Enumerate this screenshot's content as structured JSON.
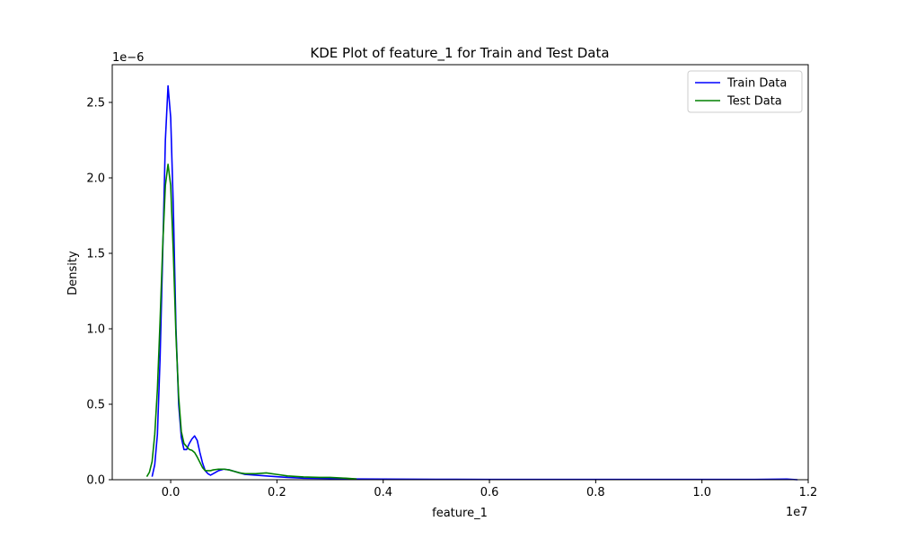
{
  "chart_data": {
    "type": "line",
    "title": "KDE Plot of feature_1 for Train and Test Data",
    "xlabel": "feature_1",
    "ylabel": "Density",
    "x_offset_label": "1e7",
    "y_offset_label": "1e−6",
    "xlim": [
      -0.11,
      1.2
    ],
    "ylim": [
      0,
      2.75
    ],
    "xticks": [
      0.0,
      0.2,
      0.4,
      0.6,
      0.8,
      1.0,
      1.2
    ],
    "xtick_labels": [
      "0.0",
      "0.2",
      "0.4",
      "0.6",
      "0.8",
      "1.0",
      "1.2"
    ],
    "yticks": [
      0.0,
      0.5,
      1.0,
      1.5,
      2.0,
      2.5
    ],
    "ytick_labels": [
      "0.0",
      "0.5",
      "1.0",
      "1.5",
      "2.0",
      "2.5"
    ],
    "grid": false,
    "legend_position": "top-right",
    "series": [
      {
        "name": "Train Data",
        "color": "#0000ff",
        "x": [
          -0.035,
          -0.03,
          -0.025,
          -0.02,
          -0.015,
          -0.01,
          -0.005,
          0.0,
          0.005,
          0.01,
          0.015,
          0.02,
          0.025,
          0.03,
          0.035,
          0.04,
          0.045,
          0.05,
          0.055,
          0.06,
          0.065,
          0.07,
          0.075,
          0.08,
          0.09,
          0.1,
          0.11,
          0.12,
          0.13,
          0.14,
          0.16,
          0.18,
          0.2,
          0.22,
          0.25,
          0.3,
          0.35,
          0.4,
          0.5,
          0.6,
          0.8,
          1.0,
          1.1,
          1.16,
          1.18
        ],
        "y": [
          0.02,
          0.1,
          0.3,
          0.8,
          1.5,
          2.25,
          2.61,
          2.4,
          1.8,
          1.0,
          0.5,
          0.28,
          0.2,
          0.2,
          0.24,
          0.27,
          0.29,
          0.26,
          0.18,
          0.11,
          0.06,
          0.04,
          0.03,
          0.04,
          0.06,
          0.07,
          0.065,
          0.055,
          0.045,
          0.035,
          0.03,
          0.025,
          0.02,
          0.015,
          0.01,
          0.008,
          0.005,
          0.004,
          0.003,
          0.002,
          0.002,
          0.002,
          0.002,
          0.004,
          0.0
        ]
      },
      {
        "name": "Test Data",
        "color": "#008000",
        "x": [
          -0.045,
          -0.04,
          -0.035,
          -0.03,
          -0.025,
          -0.02,
          -0.015,
          -0.01,
          -0.005,
          0.0,
          0.005,
          0.01,
          0.015,
          0.02,
          0.025,
          0.03,
          0.035,
          0.04,
          0.045,
          0.05,
          0.06,
          0.065,
          0.07,
          0.075,
          0.08,
          0.09,
          0.1,
          0.11,
          0.12,
          0.13,
          0.14,
          0.16,
          0.18,
          0.2,
          0.22,
          0.25,
          0.28,
          0.3,
          0.33,
          0.35
        ],
        "y": [
          0.02,
          0.05,
          0.12,
          0.3,
          0.6,
          1.05,
          1.55,
          1.95,
          2.09,
          1.95,
          1.5,
          0.95,
          0.55,
          0.32,
          0.24,
          0.22,
          0.2,
          0.195,
          0.18,
          0.15,
          0.08,
          0.06,
          0.06,
          0.06,
          0.065,
          0.07,
          0.07,
          0.065,
          0.055,
          0.045,
          0.04,
          0.04,
          0.045,
          0.035,
          0.025,
          0.018,
          0.015,
          0.015,
          0.01,
          0.005
        ]
      }
    ]
  }
}
